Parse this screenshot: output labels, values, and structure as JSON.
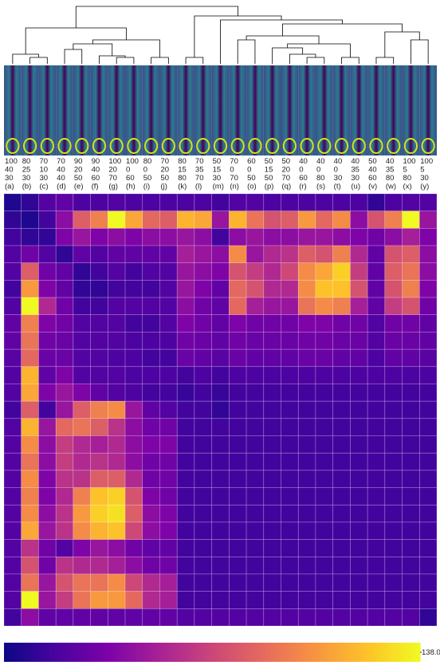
{
  "chart_data": {
    "type": "heatmap",
    "columns": [
      [
        "100",
        "40",
        "30",
        "(a)"
      ],
      [
        "80",
        "25",
        "30",
        "(b)"
      ],
      [
        "70",
        "10",
        "30",
        "(c)"
      ],
      [
        "70",
        "40",
        "40",
        "(d)"
      ],
      [
        "90",
        "20",
        "50",
        "(e)"
      ],
      [
        "90",
        "40",
        "60",
        "(f)"
      ],
      [
        "100",
        "20",
        "70",
        "(g)"
      ],
      [
        "100",
        "0",
        "60",
        "(h)"
      ],
      [
        "80",
        "0",
        "50",
        "(i)"
      ],
      [
        "70",
        "20",
        "50",
        "(j)"
      ],
      [
        "80",
        "15",
        "80",
        "(k)"
      ],
      [
        "70",
        "35",
        "70",
        "(l)"
      ],
      [
        "50",
        "15",
        "30",
        "(m)"
      ],
      [
        "70",
        "0",
        "70",
        "(n)"
      ],
      [
        "60",
        "0",
        "50",
        "(o)"
      ],
      [
        "50",
        "15",
        "50",
        "(p)"
      ],
      [
        "50",
        "20",
        "70",
        "(q)"
      ],
      [
        "40",
        "0",
        "60",
        "(r)"
      ],
      [
        "40",
        "0",
        "80",
        "(s)"
      ],
      [
        "40",
        "0",
        "30",
        "(t)"
      ],
      [
        "40",
        "35",
        "30",
        "(u)"
      ],
      [
        "50",
        "40",
        "60",
        "(v)"
      ],
      [
        "40",
        "35",
        "80",
        "(w)"
      ],
      [
        "100",
        "5",
        "80",
        "(x)"
      ],
      [
        "100",
        "5",
        "30",
        "(y)"
      ]
    ],
    "values": [
      [
        5,
        10,
        20,
        25,
        18,
        18,
        20,
        18,
        18,
        18,
        18,
        18,
        15,
        20,
        20,
        18,
        18,
        18,
        18,
        18,
        18,
        10,
        18,
        20,
        20
      ],
      [
        10,
        5,
        15,
        40,
        80,
        95,
        138,
        110,
        85,
        80,
        115,
        110,
        45,
        115,
        90,
        75,
        80,
        105,
        85,
        100,
        40,
        75,
        95,
        138,
        45
      ],
      [
        15,
        10,
        10,
        35,
        45,
        35,
        40,
        35,
        40,
        40,
        45,
        40,
        15,
        40,
        45,
        40,
        40,
        45,
        45,
        40,
        35,
        30,
        40,
        50,
        35
      ],
      [
        20,
        30,
        20,
        10,
        25,
        20,
        25,
        25,
        25,
        25,
        50,
        45,
        40,
        100,
        45,
        55,
        60,
        80,
        75,
        95,
        55,
        25,
        75,
        80,
        40
      ],
      [
        20,
        80,
        30,
        25,
        10,
        15,
        20,
        15,
        20,
        20,
        45,
        40,
        35,
        75,
        65,
        55,
        70,
        100,
        110,
        125,
        65,
        25,
        80,
        90,
        40
      ],
      [
        15,
        105,
        35,
        25,
        10,
        10,
        15,
        15,
        15,
        20,
        45,
        35,
        25,
        85,
        75,
        55,
        55,
        100,
        120,
        120,
        75,
        25,
        75,
        95,
        35
      ],
      [
        20,
        138,
        55,
        30,
        15,
        15,
        20,
        20,
        20,
        20,
        40,
        30,
        25,
        85,
        50,
        45,
        45,
        90,
        100,
        95,
        50,
        25,
        65,
        75,
        30
      ],
      [
        25,
        95,
        35,
        30,
        20,
        20,
        20,
        15,
        15,
        20,
        35,
        30,
        25,
        35,
        30,
        30,
        30,
        35,
        35,
        30,
        30,
        20,
        30,
        30,
        25
      ],
      [
        25,
        90,
        30,
        28,
        20,
        20,
        20,
        18,
        18,
        18,
        30,
        28,
        25,
        30,
        28,
        28,
        28,
        30,
        30,
        28,
        28,
        20,
        28,
        28,
        25
      ],
      [
        22,
        85,
        28,
        28,
        20,
        20,
        18,
        18,
        15,
        15,
        28,
        25,
        22,
        28,
        25,
        25,
        25,
        28,
        28,
        25,
        25,
        18,
        25,
        25,
        22
      ],
      [
        20,
        115,
        25,
        35,
        20,
        20,
        20,
        18,
        18,
        18,
        15,
        18,
        15,
        18,
        18,
        18,
        18,
        18,
        18,
        18,
        18,
        18,
        18,
        18,
        18
      ],
      [
        20,
        110,
        35,
        45,
        35,
        25,
        20,
        18,
        15,
        15,
        12,
        15,
        12,
        15,
        15,
        15,
        15,
        15,
        15,
        15,
        15,
        15,
        15,
        15,
        15
      ],
      [
        15,
        80,
        15,
        45,
        80,
        95,
        100,
        45,
        25,
        20,
        15,
        15,
        10,
        15,
        15,
        15,
        15,
        15,
        15,
        15,
        15,
        15,
        15,
        15,
        15
      ],
      [
        20,
        115,
        45,
        85,
        90,
        80,
        60,
        40,
        30,
        30,
        15,
        15,
        15,
        15,
        15,
        15,
        15,
        15,
        15,
        15,
        15,
        15,
        15,
        15,
        15
      ],
      [
        20,
        100,
        40,
        65,
        55,
        50,
        55,
        40,
        35,
        35,
        15,
        15,
        15,
        15,
        15,
        15,
        15,
        15,
        15,
        15,
        15,
        15,
        15,
        15,
        15
      ],
      [
        20,
        90,
        40,
        65,
        55,
        60,
        55,
        40,
        30,
        30,
        15,
        15,
        15,
        15,
        15,
        15,
        15,
        15,
        15,
        15,
        15,
        15,
        15,
        15,
        15
      ],
      [
        20,
        100,
        35,
        60,
        60,
        80,
        80,
        55,
        30,
        30,
        15,
        15,
        15,
        15,
        15,
        15,
        15,
        15,
        15,
        15,
        15,
        15,
        15,
        15,
        15
      ],
      [
        20,
        95,
        35,
        55,
        95,
        120,
        125,
        75,
        35,
        30,
        15,
        15,
        15,
        15,
        15,
        15,
        15,
        15,
        15,
        15,
        15,
        15,
        15,
        15,
        15
      ],
      [
        20,
        100,
        40,
        60,
        105,
        125,
        130,
        80,
        40,
        35,
        15,
        15,
        15,
        15,
        15,
        15,
        15,
        15,
        15,
        15,
        15,
        15,
        15,
        15,
        15
      ],
      [
        20,
        110,
        45,
        60,
        100,
        115,
        120,
        70,
        40,
        35,
        15,
        15,
        15,
        15,
        15,
        15,
        15,
        15,
        15,
        15,
        15,
        15,
        15,
        15,
        15
      ],
      [
        20,
        60,
        30,
        20,
        35,
        45,
        40,
        30,
        25,
        25,
        15,
        15,
        15,
        15,
        15,
        15,
        15,
        15,
        15,
        15,
        15,
        15,
        15,
        15,
        15
      ],
      [
        20,
        75,
        30,
        60,
        55,
        55,
        50,
        40,
        30,
        30,
        15,
        15,
        15,
        15,
        15,
        15,
        15,
        15,
        15,
        15,
        15,
        15,
        15,
        15,
        15
      ],
      [
        20,
        90,
        45,
        75,
        90,
        90,
        100,
        70,
        55,
        50,
        15,
        15,
        15,
        15,
        15,
        15,
        15,
        15,
        15,
        15,
        15,
        15,
        15,
        15,
        15
      ],
      [
        20,
        138,
        45,
        65,
        90,
        105,
        105,
        85,
        55,
        50,
        15,
        15,
        15,
        15,
        15,
        15,
        15,
        15,
        15,
        15,
        15,
        15,
        15,
        15,
        15
      ],
      [
        15,
        40,
        25,
        25,
        25,
        25,
        25,
        25,
        25,
        25,
        20,
        20,
        20,
        20,
        20,
        20,
        20,
        20,
        20,
        20,
        20,
        20,
        20,
        20,
        10
      ]
    ],
    "colorbar": {
      "lim": [
        0,
        138
      ],
      "ticks": [
        {
          "value": 138,
          "label": "138.0"
        }
      ]
    }
  }
}
